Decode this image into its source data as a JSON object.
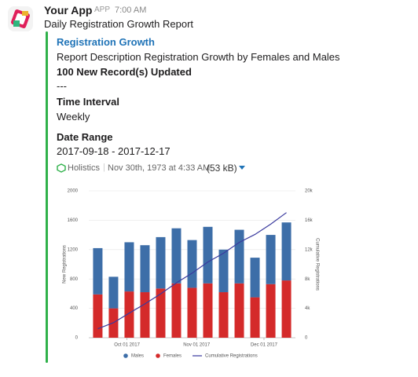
{
  "message": {
    "sender": "Your App",
    "badge": "APP",
    "time": "7:00 AM",
    "text": "Daily Registration Growth Report",
    "attachment": {
      "title": "Registration Growth",
      "description": "Report Description Registration Growth by Females and Males",
      "records": "100 New Record(s) Updated",
      "separator": "---",
      "fields": [
        {
          "title": "Time Interval",
          "value": "Weekly"
        },
        {
          "title": "Date Range",
          "value": "2017-09-18 - 2017-12-17"
        }
      ],
      "footer": {
        "source": "Holistics",
        "date": "Nov 30th, 1973 at 4:33 AM",
        "size": "(53 kB)"
      }
    }
  },
  "chart_data": {
    "type": "bar",
    "stacked": true,
    "x": [
      "2017-09-18",
      "2017-09-25",
      "2017-10-02",
      "2017-10-09",
      "2017-10-16",
      "2017-10-23",
      "2017-10-30",
      "2017-11-06",
      "2017-11-13",
      "2017-11-20",
      "2017-11-27",
      "2017-12-04",
      "2017-12-11"
    ],
    "xlim": [
      "2017-09-14",
      "2017-12-15"
    ],
    "xticks": [
      {
        "value": "2017-10-01",
        "label": "Oct 01 2017"
      },
      {
        "value": "2017-11-01",
        "label": "Nov 01 2017"
      },
      {
        "value": "2017-12-01",
        "label": "Dec 01 2017"
      }
    ],
    "y_label": "New Registrations",
    "y2_label": "Cumulative Registrations",
    "ylim": [
      0,
      2000
    ],
    "yticks": [
      0,
      400,
      800,
      1200,
      1600,
      2000
    ],
    "y2lim": [
      0,
      20000
    ],
    "y2ticks": [
      0,
      {
        "value": 4000,
        "label": "4k"
      },
      {
        "value": 8000,
        "label": "8k"
      },
      {
        "value": 12000,
        "label": "12k"
      },
      {
        "value": 16000,
        "label": "16k"
      },
      {
        "value": 20000,
        "label": "20k"
      }
    ],
    "series": [
      {
        "name": "Males",
        "color": "#3d6ea8",
        "type": "bar",
        "values": [
          630,
          430,
          670,
          640,
          700,
          750,
          650,
          770,
          580,
          730,
          540,
          670,
          790
        ]
      },
      {
        "name": "Females",
        "color": "#d42a2a",
        "type": "bar",
        "values": [
          590,
          400,
          630,
          620,
          670,
          740,
          680,
          740,
          620,
          740,
          550,
          730,
          780
        ]
      },
      {
        "name": "Cumulative Registrations",
        "color": "#3a3a9e",
        "type": "line",
        "axis": "y2",
        "values": [
          1220,
          2050,
          3350,
          4610,
          5980,
          7470,
          8800,
          10310,
          11510,
          12980,
          14070,
          15470,
          17040
        ]
      }
    ],
    "legend": "bottom"
  }
}
